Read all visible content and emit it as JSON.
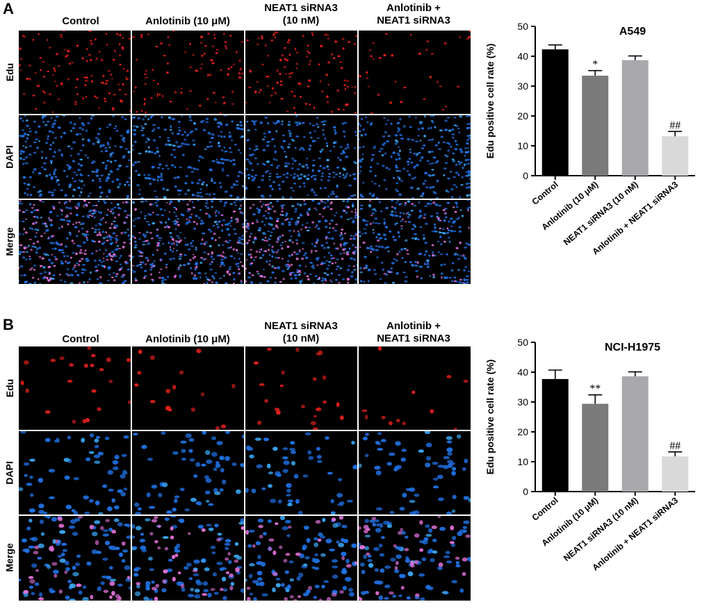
{
  "panels": [
    {
      "label": "A",
      "columns": [
        "Control",
        "Anlotinib (10 μM)",
        "NEAT1 siRNA3\n(10 nM)",
        "Anlotinib +\nNEAT1 siRNA3"
      ],
      "rows": [
        "Edu",
        "DAPI",
        "Merge"
      ]
    },
    {
      "label": "B",
      "columns": [
        "Control",
        "Anlotinib (10 μM)",
        "NEAT1 siRNA3\n(10 nM)",
        "Anlotinib +\nNEAT1 siRNA3"
      ],
      "rows": [
        "Edu",
        "DAPI",
        "Merge"
      ]
    }
  ],
  "colors": {
    "edu": "#e0201c",
    "dapi": "#1f6fe0",
    "merge": "#e070d8",
    "bars": [
      "#000000",
      "#7a7a7a",
      "#a9a9ad",
      "#d9d9d9"
    ]
  },
  "chart_data": [
    {
      "type": "bar",
      "title": "A549",
      "ylabel": "Edu positive cell rate (%)",
      "categories": [
        "Control",
        "Anlotinib (10 μM)",
        "NEAT1 siRNA3 (10 nM)",
        "Anlotinib + NEAT1 siRNA3"
      ],
      "values": [
        42.3,
        33.5,
        38.7,
        13.2
      ],
      "errors": [
        1.5,
        1.7,
        1.4,
        1.6
      ],
      "significance": [
        "",
        "*",
        "",
        "##"
      ],
      "ylim": [
        0,
        50
      ],
      "yticks": [
        "0",
        "10",
        "20",
        "30",
        "40",
        "50"
      ]
    },
    {
      "type": "bar",
      "title": "NCI-H1975",
      "ylabel": "Edu positive cell rate (%)",
      "categories": [
        "Control",
        "Anlotinib (10 μM)",
        "NEAT1 siRNA3 (10 nM)",
        "Anlotinib + NEAT1 siRNA3"
      ],
      "values": [
        37.7,
        29.4,
        38.6,
        11.8
      ],
      "errors": [
        3.0,
        3.0,
        1.5,
        1.5
      ],
      "significance": [
        "",
        "**",
        "",
        "##"
      ],
      "ylim": [
        0,
        50
      ],
      "yticks": [
        "0",
        "10",
        "20",
        "30",
        "40",
        "50"
      ]
    }
  ]
}
